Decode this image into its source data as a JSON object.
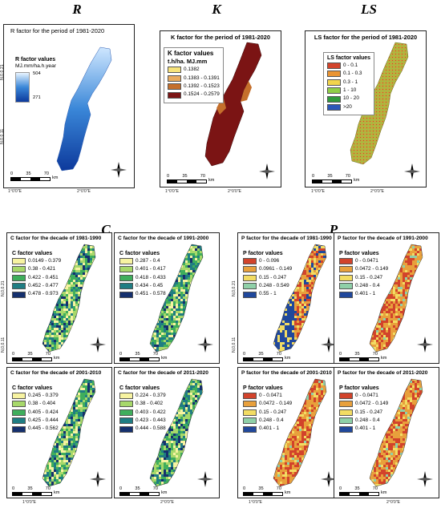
{
  "section_letters": {
    "r": "R",
    "k": "K",
    "ls": "LS",
    "c": "C",
    "p": "P"
  },
  "coords": {
    "lon_a": "1°0'0\"E",
    "lon_b": "2°0'0\"E",
    "lat_a": "N,0,0.21",
    "lat_b": "N,0,0.11"
  },
  "scale": {
    "n0": "0",
    "n1": "35",
    "n2": "70",
    "unit": "km"
  },
  "r_panel": {
    "title": "R factor for the period of 1981-2020",
    "legend_title": "R factor values",
    "legend_unit": "MJ.mm/ha.h.year",
    "max": "504",
    "min": "271",
    "colors": [
      "#e8f4ff",
      "#3a87d8",
      "#0d3a9c"
    ]
  },
  "k_panel": {
    "title": "K factor for the period of 1981-2020",
    "legend_title": "K factor values",
    "legend_unit": "t.h/ha. MJ.mm",
    "classes": [
      {
        "label": "0.1382",
        "color": "#f7e37a"
      },
      {
        "label": "0.1383 - 0.1391",
        "color": "#e9ab5e"
      },
      {
        "label": "0.1392 - 0.1523",
        "color": "#c56f2c"
      },
      {
        "label": "0.1524 - 0.2579",
        "color": "#7b1414"
      }
    ]
  },
  "ls_panel": {
    "title": "LS factor for the period of 1981-2020",
    "legend_title": "LS factor values",
    "classes": [
      {
        "label": "0 - 0.1",
        "color": "#d2432b"
      },
      {
        "label": "0.1 - 0.3",
        "color": "#ea9432"
      },
      {
        "label": "0.3 - 1",
        "color": "#f2d44c"
      },
      {
        "label": "1 - 10",
        "color": "#8fce48"
      },
      {
        "label": "10 - 20",
        "color": "#2f9a3c"
      },
      {
        "label": ">20",
        "color": "#2b57b8"
      }
    ]
  },
  "c_panels": [
    {
      "title": "C  factor for the decade of 1981-1990",
      "legend_title": "C factor values",
      "classes": [
        {
          "label": "0.0149 - 0.379",
          "color": "#f7f3a1"
        },
        {
          "label": "0.38 - 0.421",
          "color": "#a7d86a"
        },
        {
          "label": "0.422 - 0.451",
          "color": "#3fae5c"
        },
        {
          "label": "0.452 - 0.477",
          "color": "#1f7d83"
        },
        {
          "label": "0.478 - 0.973",
          "color": "#15306e"
        }
      ]
    },
    {
      "title": "C  factor for the decade of 1991-2000",
      "legend_title": "C factor values",
      "classes": [
        {
          "label": "0.287 - 0.4",
          "color": "#f7f3a1"
        },
        {
          "label": "0.401 - 0.417",
          "color": "#a7d86a"
        },
        {
          "label": "0.418 - 0.433",
          "color": "#3fae5c"
        },
        {
          "label": "0.434 - 0.45",
          "color": "#1f7d83"
        },
        {
          "label": "0.451 - 0.578",
          "color": "#15306e"
        }
      ]
    },
    {
      "title": "C  factor for the decade of 2001-2010",
      "legend_title": "C factor values",
      "classes": [
        {
          "label": "0.245 - 0.379",
          "color": "#f7f3a1"
        },
        {
          "label": "0.38 - 0.404",
          "color": "#a7d86a"
        },
        {
          "label": "0.405 - 0.424",
          "color": "#3fae5c"
        },
        {
          "label": "0.425 - 0.444",
          "color": "#1f7d83"
        },
        {
          "label": "0.445 - 0.562",
          "color": "#15306e"
        }
      ]
    },
    {
      "title": "C  factor for the decade of 2011-2020",
      "legend_title": "C factor values",
      "classes": [
        {
          "label": "0.224 - 0.379",
          "color": "#f7f3a1"
        },
        {
          "label": "0.38 - 0.402",
          "color": "#a7d86a"
        },
        {
          "label": "0.403 - 0.422",
          "color": "#3fae5c"
        },
        {
          "label": "0.423 - 0.443",
          "color": "#1f7d83"
        },
        {
          "label": "0.444 - 0.588",
          "color": "#15306e"
        }
      ]
    }
  ],
  "p_panels": [
    {
      "title": "P factor for the decade of 1981-1990",
      "legend_title": "P factor values",
      "classes": [
        {
          "label": "0 - 0.096",
          "color": "#d2432b"
        },
        {
          "label": "0.0961 - 0.149",
          "color": "#e8a03c"
        },
        {
          "label": "0.15 - 0.247",
          "color": "#f2dc63"
        },
        {
          "label": "0.248 - 0.549",
          "color": "#8fd0a8"
        },
        {
          "label": "0.55 - 1",
          "color": "#20489c"
        }
      ]
    },
    {
      "title": "P factor for the decade of 1991-2000",
      "legend_title": "P factor values",
      "classes": [
        {
          "label": "0 - 0.0471",
          "color": "#d2432b"
        },
        {
          "label": "0.0472 - 0.149",
          "color": "#e8a03c"
        },
        {
          "label": "0.15 - 0.247",
          "color": "#f2dc63"
        },
        {
          "label": "0.248 - 0.4",
          "color": "#8fd0a8"
        },
        {
          "label": "0.401 - 1",
          "color": "#20489c"
        }
      ]
    },
    {
      "title": "P factor for the decade of 2001-2010",
      "legend_title": "P factor values",
      "classes": [
        {
          "label": "0 - 0.0471",
          "color": "#d2432b"
        },
        {
          "label": "0.0472 - 0.149",
          "color": "#e8a03c"
        },
        {
          "label": "0.15 - 0.247",
          "color": "#f2dc63"
        },
        {
          "label": "0.248 - 0.4",
          "color": "#8fd0a8"
        },
        {
          "label": "0.401 - 1",
          "color": "#20489c"
        }
      ]
    },
    {
      "title": "P factor for the decade of 2011-2020",
      "legend_title": "P factor values",
      "classes": [
        {
          "label": "0 - 0.0471",
          "color": "#d2432b"
        },
        {
          "label": "0.0472 - 0.149",
          "color": "#e8a03c"
        },
        {
          "label": "0.15 - 0.247",
          "color": "#f2dc63"
        },
        {
          "label": "0.248 - 0.4",
          "color": "#8fd0a8"
        },
        {
          "label": "0.401 - 1",
          "color": "#20489c"
        }
      ]
    }
  ]
}
